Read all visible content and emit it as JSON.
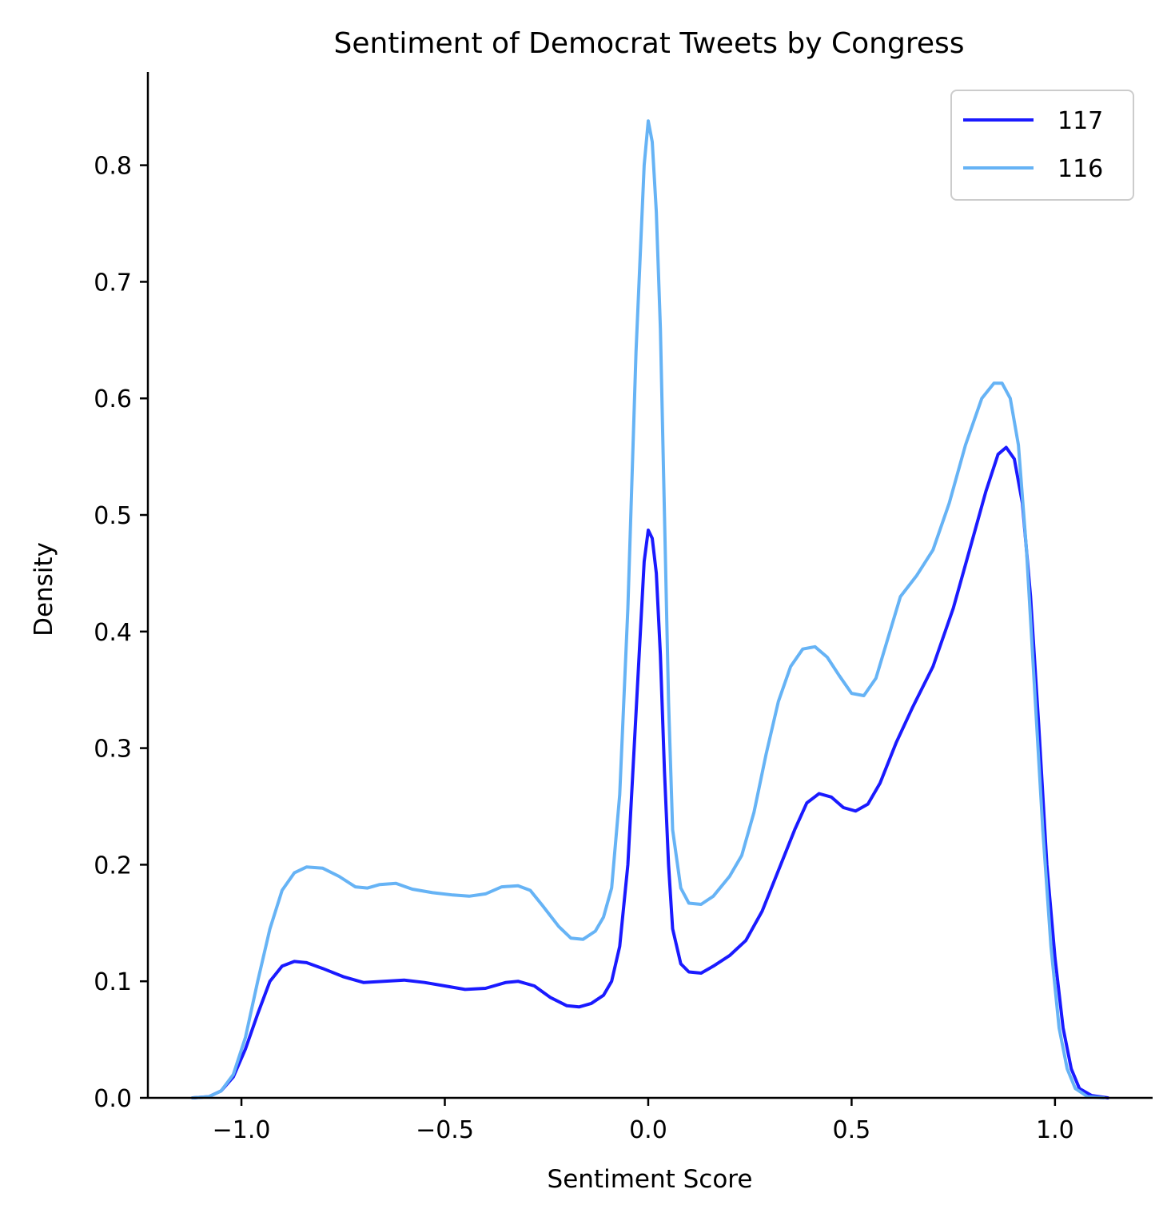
{
  "chart_data": {
    "type": "line",
    "title": "Sentiment of Democrat Tweets by Congress",
    "xlabel": "Sentiment Score",
    "ylabel": "Density",
    "xlim": [
      -1.23,
      1.24
    ],
    "ylim": [
      0,
      0.88
    ],
    "xticks": [
      -1.0,
      -0.5,
      0.0,
      0.5,
      1.0
    ],
    "xtick_labels": [
      "−1.0",
      "−0.5",
      "0.0",
      "0.5",
      "1.0"
    ],
    "yticks": [
      0.0,
      0.1,
      0.2,
      0.3,
      0.4,
      0.5,
      0.6,
      0.7,
      0.8
    ],
    "ytick_labels": [
      "0.0",
      "0.1",
      "0.2",
      "0.3",
      "0.4",
      "0.5",
      "0.6",
      "0.7",
      "0.8"
    ],
    "grid": false,
    "legend": "top-right",
    "series": [
      {
        "name": "117",
        "color": "#1a1aff",
        "points": [
          [
            -1.12,
            0.0
          ],
          [
            -1.08,
            0.001
          ],
          [
            -1.05,
            0.006
          ],
          [
            -1.02,
            0.018
          ],
          [
            -0.99,
            0.042
          ],
          [
            -0.96,
            0.072
          ],
          [
            -0.93,
            0.1
          ],
          [
            -0.9,
            0.113
          ],
          [
            -0.87,
            0.117
          ],
          [
            -0.84,
            0.116
          ],
          [
            -0.8,
            0.111
          ],
          [
            -0.75,
            0.104
          ],
          [
            -0.7,
            0.099
          ],
          [
            -0.65,
            0.1
          ],
          [
            -0.6,
            0.101
          ],
          [
            -0.55,
            0.099
          ],
          [
            -0.5,
            0.096
          ],
          [
            -0.45,
            0.093
          ],
          [
            -0.4,
            0.094
          ],
          [
            -0.35,
            0.099
          ],
          [
            -0.32,
            0.1
          ],
          [
            -0.28,
            0.096
          ],
          [
            -0.24,
            0.086
          ],
          [
            -0.2,
            0.079
          ],
          [
            -0.17,
            0.078
          ],
          [
            -0.14,
            0.081
          ],
          [
            -0.11,
            0.088
          ],
          [
            -0.09,
            0.1
          ],
          [
            -0.07,
            0.13
          ],
          [
            -0.05,
            0.2
          ],
          [
            -0.03,
            0.33
          ],
          [
            -0.01,
            0.46
          ],
          [
            0.0,
            0.487
          ],
          [
            0.01,
            0.48
          ],
          [
            0.02,
            0.45
          ],
          [
            0.03,
            0.38
          ],
          [
            0.04,
            0.28
          ],
          [
            0.05,
            0.2
          ],
          [
            0.06,
            0.145
          ],
          [
            0.08,
            0.115
          ],
          [
            0.1,
            0.108
          ],
          [
            0.13,
            0.107
          ],
          [
            0.16,
            0.113
          ],
          [
            0.2,
            0.122
          ],
          [
            0.24,
            0.135
          ],
          [
            0.28,
            0.16
          ],
          [
            0.32,
            0.195
          ],
          [
            0.36,
            0.23
          ],
          [
            0.39,
            0.253
          ],
          [
            0.42,
            0.261
          ],
          [
            0.45,
            0.258
          ],
          [
            0.48,
            0.249
          ],
          [
            0.51,
            0.246
          ],
          [
            0.54,
            0.252
          ],
          [
            0.57,
            0.27
          ],
          [
            0.61,
            0.305
          ],
          [
            0.65,
            0.335
          ],
          [
            0.7,
            0.37
          ],
          [
            0.75,
            0.42
          ],
          [
            0.79,
            0.47
          ],
          [
            0.83,
            0.52
          ],
          [
            0.86,
            0.552
          ],
          [
            0.88,
            0.558
          ],
          [
            0.9,
            0.548
          ],
          [
            0.92,
            0.51
          ],
          [
            0.94,
            0.43
          ],
          [
            0.96,
            0.32
          ],
          [
            0.98,
            0.2
          ],
          [
            1.0,
            0.12
          ],
          [
            1.02,
            0.06
          ],
          [
            1.04,
            0.025
          ],
          [
            1.06,
            0.008
          ],
          [
            1.09,
            0.002
          ],
          [
            1.13,
            0.0
          ]
        ]
      },
      {
        "name": "116",
        "color": "#66b3f5",
        "points": [
          [
            -1.12,
            0.0
          ],
          [
            -1.08,
            0.001
          ],
          [
            -1.05,
            0.006
          ],
          [
            -1.02,
            0.02
          ],
          [
            -0.99,
            0.052
          ],
          [
            -0.96,
            0.1
          ],
          [
            -0.93,
            0.145
          ],
          [
            -0.9,
            0.178
          ],
          [
            -0.87,
            0.193
          ],
          [
            -0.84,
            0.198
          ],
          [
            -0.8,
            0.197
          ],
          [
            -0.76,
            0.19
          ],
          [
            -0.72,
            0.181
          ],
          [
            -0.69,
            0.18
          ],
          [
            -0.66,
            0.183
          ],
          [
            -0.62,
            0.184
          ],
          [
            -0.58,
            0.179
          ],
          [
            -0.53,
            0.176
          ],
          [
            -0.48,
            0.174
          ],
          [
            -0.44,
            0.173
          ],
          [
            -0.4,
            0.175
          ],
          [
            -0.36,
            0.181
          ],
          [
            -0.32,
            0.182
          ],
          [
            -0.29,
            0.178
          ],
          [
            -0.26,
            0.165
          ],
          [
            -0.22,
            0.147
          ],
          [
            -0.19,
            0.137
          ],
          [
            -0.16,
            0.136
          ],
          [
            -0.13,
            0.143
          ],
          [
            -0.11,
            0.155
          ],
          [
            -0.09,
            0.18
          ],
          [
            -0.07,
            0.26
          ],
          [
            -0.05,
            0.42
          ],
          [
            -0.03,
            0.64
          ],
          [
            -0.01,
            0.8
          ],
          [
            0.0,
            0.838
          ],
          [
            0.01,
            0.82
          ],
          [
            0.02,
            0.76
          ],
          [
            0.03,
            0.66
          ],
          [
            0.04,
            0.5
          ],
          [
            0.05,
            0.34
          ],
          [
            0.06,
            0.23
          ],
          [
            0.08,
            0.18
          ],
          [
            0.1,
            0.167
          ],
          [
            0.13,
            0.166
          ],
          [
            0.16,
            0.173
          ],
          [
            0.2,
            0.19
          ],
          [
            0.23,
            0.208
          ],
          [
            0.26,
            0.245
          ],
          [
            0.29,
            0.295
          ],
          [
            0.32,
            0.34
          ],
          [
            0.35,
            0.37
          ],
          [
            0.38,
            0.385
          ],
          [
            0.41,
            0.387
          ],
          [
            0.44,
            0.378
          ],
          [
            0.47,
            0.362
          ],
          [
            0.5,
            0.347
          ],
          [
            0.53,
            0.345
          ],
          [
            0.56,
            0.36
          ],
          [
            0.59,
            0.395
          ],
          [
            0.62,
            0.43
          ],
          [
            0.66,
            0.448
          ],
          [
            0.7,
            0.47
          ],
          [
            0.74,
            0.51
          ],
          [
            0.78,
            0.56
          ],
          [
            0.82,
            0.6
          ],
          [
            0.85,
            0.613
          ],
          [
            0.87,
            0.613
          ],
          [
            0.89,
            0.6
          ],
          [
            0.91,
            0.56
          ],
          [
            0.93,
            0.47
          ],
          [
            0.95,
            0.35
          ],
          [
            0.97,
            0.23
          ],
          [
            0.99,
            0.13
          ],
          [
            1.01,
            0.06
          ],
          [
            1.03,
            0.025
          ],
          [
            1.05,
            0.008
          ],
          [
            1.08,
            0.001
          ],
          [
            1.12,
            0.0
          ]
        ]
      }
    ]
  }
}
